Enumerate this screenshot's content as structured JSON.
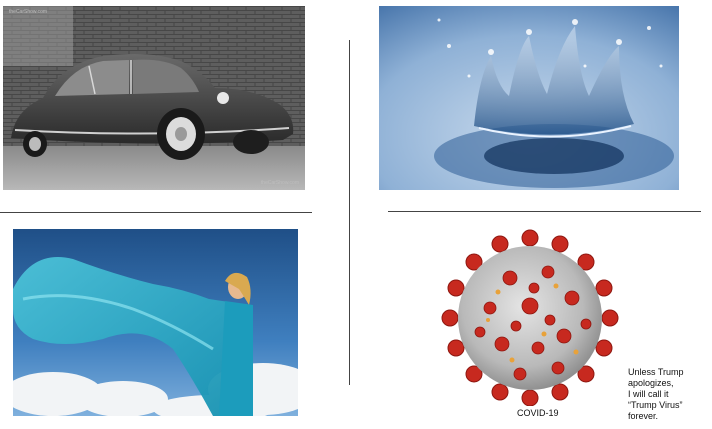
{
  "slide": {
    "car_photo": {
      "watermark_top": "theCarShow.com",
      "watermark_bottom": "theCarShow.com"
    },
    "virus_caption": "COVID-19",
    "note_lines": [
      "Unless Trump",
      "apologizes,",
      "I will call it",
      "“Trump Virus”",
      "forever."
    ]
  }
}
